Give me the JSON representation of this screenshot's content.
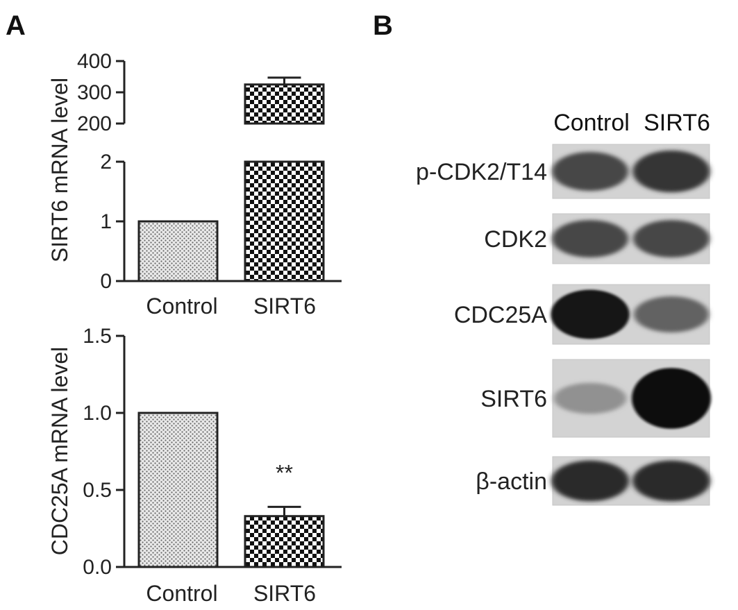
{
  "panel_labels": {
    "a": "A",
    "b": "B"
  },
  "chart_data": [
    {
      "type": "bar",
      "ylabel": "SIRT6 mRNA level",
      "broken_axis": true,
      "lower_ylim": [
        0,
        2
      ],
      "upper_ylim": [
        200,
        400
      ],
      "lower_ticks": [
        "0",
        "1",
        "2"
      ],
      "upper_ticks": [
        "200",
        "300",
        "400"
      ],
      "categories": [
        "Control",
        "SIRT6"
      ],
      "values": [
        1,
        325
      ],
      "errors": [
        0,
        22
      ],
      "patterns": [
        "dots",
        "checker"
      ],
      "annotations": []
    },
    {
      "type": "bar",
      "ylabel": "CDC25A mRNA level",
      "ylim": [
        0,
        1.5
      ],
      "ticks": [
        "0.0",
        "0.5",
        "1.0",
        "1.5"
      ],
      "categories": [
        "Control",
        "SIRT6"
      ],
      "values": [
        1.0,
        0.33
      ],
      "errors": [
        0,
        0.06
      ],
      "patterns": [
        "dots",
        "checker"
      ],
      "annotations": [
        {
          "category": "SIRT6",
          "text": "**"
        }
      ]
    }
  ],
  "blot": {
    "columns": [
      "Control",
      "SIRT6"
    ],
    "rows": [
      {
        "label": "p-CDK2/T14",
        "intensity": [
          0.7,
          0.8
        ]
      },
      {
        "label": "CDK2",
        "intensity": [
          0.7,
          0.7
        ]
      },
      {
        "label": "CDC25A",
        "intensity": [
          0.95,
          0.55
        ]
      },
      {
        "label": "SIRT6",
        "intensity": [
          0.3,
          1.0
        ]
      },
      {
        "label": "β-actin",
        "intensity": [
          0.85,
          0.85
        ]
      }
    ]
  }
}
